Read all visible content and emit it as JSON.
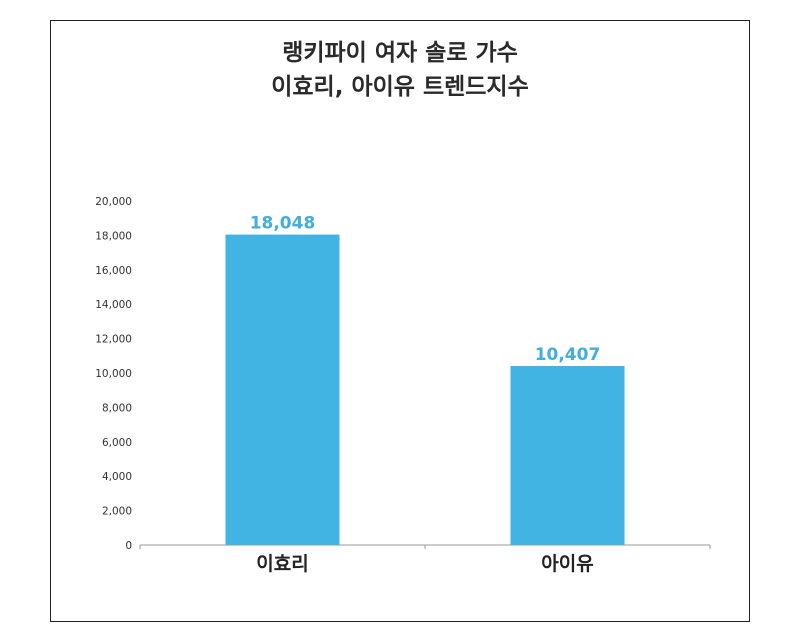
{
  "title_lines": [
    "랭키파이 여자 솔로 가수",
    "이효리, 아이유 트렌드지수"
  ],
  "colors": {
    "bar": "#42b4e3",
    "data_label": "#42aee0",
    "axis": "#999999"
  },
  "chart_data": {
    "type": "bar",
    "title": "랭키파이 여자 솔로 가수 이효리, 아이유 트렌드지수",
    "categories": [
      "이효리",
      "아이유"
    ],
    "values": [
      18048,
      10407
    ],
    "value_labels": [
      "18,048",
      "10,407"
    ],
    "yticks": [
      "0",
      "2,000",
      "4,000",
      "6,000",
      "8,000",
      "10,000",
      "12,000",
      "14,000",
      "16,000",
      "18,000",
      "20,000"
    ],
    "ylim": [
      0,
      20000
    ],
    "xlabel": "",
    "ylabel": "",
    "grid": false
  }
}
